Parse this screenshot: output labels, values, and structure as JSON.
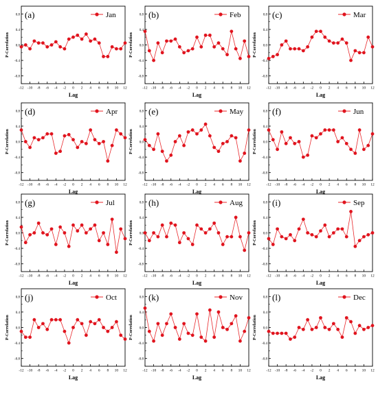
{
  "figure": {
    "ylabel": "P-Correlation",
    "xlabel": "Lag"
  },
  "axis": {
    "xlim": [
      -12,
      12
    ],
    "ylim": [
      -1.0,
      1.0
    ],
    "xticks": [
      "-12",
      "-10",
      "-8",
      "-6",
      "-4",
      "-2",
      "0",
      "2",
      "4",
      "6",
      "8",
      "10",
      "12"
    ],
    "yticks": [
      "-0.8",
      "-0.4",
      "0.0",
      "0.4",
      "0.8"
    ],
    "line_color": "#e8262a",
    "marker_color": "#e0141e"
  },
  "chart_data": [
    {
      "type": "line",
      "panel": "(a)",
      "legend": "Jan",
      "x": [
        -12,
        -11,
        -10,
        -9,
        -8,
        -7,
        -6,
        -5,
        -4,
        -3,
        -2,
        -1,
        0,
        1,
        2,
        3,
        4,
        5,
        6,
        7,
        8,
        9,
        10,
        11,
        12
      ],
      "values": [
        -0.05,
        0.0,
        -0.1,
        0.1,
        0.05,
        0.05,
        -0.05,
        0.0,
        0.08,
        -0.05,
        -0.1,
        0.15,
        0.2,
        0.25,
        0.15,
        0.28,
        0.1,
        0.15,
        0.05,
        -0.3,
        -0.3,
        -0.05,
        -0.1,
        -0.1,
        0.05
      ]
    },
    {
      "type": "line",
      "panel": "(b)",
      "legend": "Feb",
      "x": [
        -12,
        -11,
        -10,
        -9,
        -8,
        -7,
        -6,
        -5,
        -4,
        -3,
        -2,
        -1,
        0,
        1,
        2,
        3,
        4,
        5,
        6,
        7,
        8,
        9,
        10,
        11,
        12
      ],
      "values": [
        0.35,
        -0.15,
        -0.4,
        0.05,
        -0.2,
        0.1,
        0.1,
        0.15,
        -0.05,
        -0.2,
        -0.15,
        -0.1,
        0.2,
        -0.05,
        0.25,
        0.25,
        -0.05,
        0.05,
        -0.1,
        -0.25,
        0.35,
        -0.1,
        -0.35,
        0.1,
        -0.3
      ]
    },
    {
      "type": "line",
      "panel": "(c)",
      "legend": "Mar",
      "x": [
        -12,
        -11,
        -10,
        -9,
        -8,
        -7,
        -6,
        -5,
        -4,
        -3,
        -2,
        -1,
        0,
        1,
        2,
        3,
        4,
        5,
        6,
        7,
        8,
        9,
        10,
        11,
        12
      ],
      "values": [
        -0.35,
        -0.3,
        -0.25,
        0.0,
        0.1,
        -0.1,
        -0.1,
        -0.1,
        -0.15,
        -0.05,
        0.2,
        0.35,
        0.35,
        0.2,
        0.1,
        0.05,
        0.05,
        0.15,
        0.05,
        -0.4,
        -0.15,
        -0.2,
        -0.2,
        0.2,
        -0.05
      ]
    },
    {
      "type": "line",
      "panel": "(d)",
      "legend": "Apr",
      "x": [
        -12,
        -11,
        -10,
        -9,
        -8,
        -7,
        -6,
        -5,
        -4,
        -3,
        -2,
        -1,
        0,
        1,
        2,
        3,
        4,
        5,
        6,
        7,
        8,
        9,
        10,
        11,
        12
      ],
      "values": [
        0.3,
        0.0,
        -0.15,
        0.1,
        0.05,
        0.1,
        0.2,
        0.2,
        -0.3,
        -0.25,
        0.15,
        0.18,
        0.05,
        -0.15,
        0.0,
        -0.05,
        0.3,
        0.05,
        -0.05,
        0.0,
        -0.5,
        -0.1,
        0.3,
        0.2,
        0.1
      ]
    },
    {
      "type": "line",
      "panel": "(e)",
      "legend": "May",
      "x": [
        -12,
        -11,
        -10,
        -9,
        -8,
        -7,
        -6,
        -5,
        -4,
        -3,
        -2,
        -1,
        0,
        1,
        2,
        3,
        4,
        5,
        6,
        7,
        8,
        9,
        10,
        11,
        12
      ],
      "values": [
        0.05,
        -0.1,
        -0.2,
        0.2,
        -0.25,
        -0.5,
        -0.35,
        0.0,
        0.15,
        -0.1,
        0.25,
        0.3,
        0.2,
        0.3,
        0.45,
        0.15,
        -0.15,
        -0.25,
        -0.05,
        0.0,
        0.15,
        0.1,
        -0.5,
        -0.3,
        0.3
      ]
    },
    {
      "type": "line",
      "panel": "(f)",
      "legend": "Jun",
      "x": [
        -12,
        -11,
        -10,
        -9,
        -8,
        -7,
        -6,
        -5,
        -4,
        -3,
        -2,
        -1,
        0,
        1,
        2,
        3,
        4,
        5,
        6,
        7,
        8,
        9,
        10,
        11,
        12
      ],
      "values": [
        0.3,
        0.05,
        -0.2,
        0.25,
        -0.05,
        0.1,
        -0.05,
        0.0,
        -0.4,
        -0.35,
        0.15,
        0.1,
        0.2,
        0.3,
        0.3,
        0.3,
        0.0,
        0.1,
        -0.05,
        -0.2,
        -0.3,
        0.3,
        -0.2,
        -0.1,
        0.2
      ]
    },
    {
      "type": "line",
      "panel": "(g)",
      "legend": "Jul",
      "x": [
        -12,
        -11,
        -10,
        -9,
        -8,
        -7,
        -6,
        -5,
        -4,
        -3,
        -2,
        -1,
        0,
        1,
        2,
        3,
        4,
        5,
        6,
        7,
        8,
        9,
        10,
        11,
        12
      ],
      "values": [
        0.15,
        -0.25,
        -0.05,
        0.0,
        0.25,
        0.0,
        -0.05,
        0.1,
        -0.3,
        0.15,
        0.0,
        -0.35,
        0.2,
        0.05,
        0.2,
        0.0,
        0.1,
        0.2,
        -0.2,
        0.0,
        -0.3,
        0.35,
        -0.5,
        0.1,
        -0.15
      ]
    },
    {
      "type": "line",
      "panel": "(h)",
      "legend": "Aug",
      "x": [
        -12,
        -11,
        -10,
        -9,
        -8,
        -7,
        -6,
        -5,
        -4,
        -3,
        -2,
        -1,
        0,
        1,
        2,
        3,
        4,
        5,
        6,
        7,
        8,
        9,
        10,
        11,
        12
      ],
      "values": [
        0.0,
        -0.2,
        0.0,
        -0.1,
        0.2,
        -0.1,
        0.25,
        0.2,
        -0.25,
        0.0,
        -0.15,
        -0.3,
        0.2,
        0.1,
        0.0,
        0.1,
        0.25,
        0.0,
        -0.3,
        -0.1,
        -0.1,
        0.4,
        -0.1,
        -0.45,
        0.0
      ]
    },
    {
      "type": "line",
      "panel": "(i)",
      "legend": "Sep",
      "x": [
        -12,
        -11,
        -10,
        -9,
        -8,
        -7,
        -6,
        -5,
        -4,
        -3,
        -2,
        -1,
        0,
        1,
        2,
        3,
        4,
        5,
        6,
        7,
        8,
        9,
        10,
        11,
        12
      ],
      "values": [
        -0.15,
        -0.3,
        0.1,
        -0.1,
        -0.15,
        -0.05,
        -0.2,
        0.1,
        0.35,
        0.0,
        -0.05,
        -0.1,
        0.05,
        0.2,
        -0.1,
        0.0,
        0.1,
        0.1,
        -0.1,
        0.55,
        -0.35,
        -0.2,
        -0.1,
        -0.05,
        0.0
      ]
    },
    {
      "type": "line",
      "panel": "(j)",
      "legend": "Oct",
      "x": [
        -12,
        -11,
        -10,
        -9,
        -8,
        -7,
        -6,
        -5,
        -4,
        -3,
        -2,
        -1,
        0,
        1,
        2,
        3,
        4,
        5,
        6,
        7,
        8,
        9,
        10,
        11,
        12
      ],
      "values": [
        -0.1,
        -0.25,
        -0.25,
        0.2,
        0.0,
        0.1,
        -0.05,
        0.2,
        0.2,
        0.2,
        -0.1,
        -0.4,
        0.0,
        0.2,
        0.1,
        -0.2,
        0.15,
        0.1,
        0.2,
        0.0,
        -0.1,
        0.0,
        0.15,
        -0.2,
        -0.3
      ]
    },
    {
      "type": "line",
      "panel": "(k)",
      "legend": "Nov",
      "x": [
        -12,
        -11,
        -10,
        -9,
        -8,
        -7,
        -6,
        -5,
        -4,
        -3,
        -2,
        -1,
        0,
        1,
        2,
        3,
        4,
        5,
        6,
        7,
        8,
        9,
        10,
        11,
        12
      ],
      "values": [
        0.5,
        -0.1,
        -0.35,
        0.1,
        -0.2,
        0.1,
        0.35,
        0.0,
        -0.3,
        0.1,
        -0.15,
        -0.2,
        0.35,
        -0.25,
        -0.35,
        0.45,
        -0.25,
        0.4,
        0.0,
        -0.05,
        0.1,
        0.3,
        -0.35,
        -0.1,
        0.25
      ]
    },
    {
      "type": "line",
      "panel": "(l)",
      "legend": "Dec",
      "x": [
        -12,
        -11,
        -10,
        -9,
        -8,
        -7,
        -6,
        -5,
        -4,
        -3,
        -2,
        -1,
        0,
        1,
        2,
        3,
        4,
        5,
        6,
        7,
        8,
        9,
        10,
        11,
        12
      ],
      "values": [
        -0.1,
        -0.15,
        -0.15,
        -0.15,
        -0.15,
        -0.3,
        -0.25,
        0.0,
        -0.05,
        0.2,
        -0.05,
        0.0,
        0.25,
        0.0,
        -0.05,
        0.1,
        -0.05,
        -0.25,
        0.25,
        0.15,
        -0.15,
        0.05,
        -0.05,
        0.0,
        0.05
      ]
    }
  ]
}
